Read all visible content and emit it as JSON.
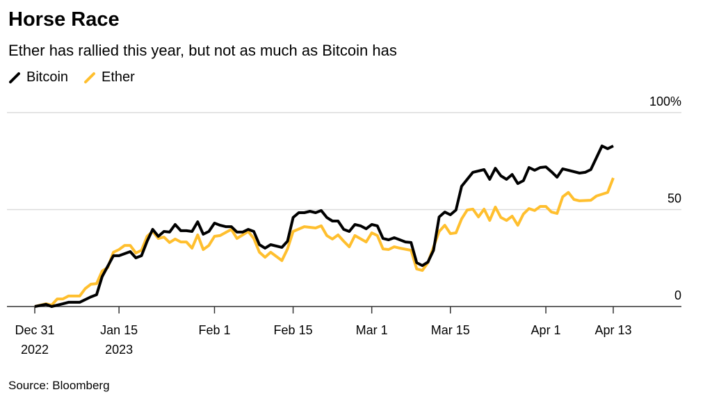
{
  "title": "Horse Race",
  "subtitle": "Ether has rallied this year, but not as much as Bitcoin has",
  "source": "Source: Bloomberg",
  "colors": {
    "bitcoin": "#000000",
    "ether": "#ffbf2e",
    "grid": "#dcdcdc"
  },
  "chart_data": {
    "type": "line",
    "title": "Horse Race",
    "xlabel": "",
    "ylabel": "",
    "ylim": [
      0,
      100
    ],
    "xlim": [
      "2022-12-31",
      "2023-04-13"
    ],
    "grid": true,
    "legend": "top-left",
    "y_ticks": [
      {
        "value": 0,
        "label": "0"
      },
      {
        "value": 50,
        "label": "50"
      },
      {
        "value": 100,
        "label": "100%"
      }
    ],
    "x_ticks": [
      {
        "date": "2022-12-31",
        "label": "Dec 31",
        "label2": "2022"
      },
      {
        "date": "2023-01-15",
        "label": "Jan 15",
        "label2": "2023"
      },
      {
        "date": "2023-02-01",
        "label": "Feb 1",
        "label2": ""
      },
      {
        "date": "2023-02-15",
        "label": "Feb 15",
        "label2": ""
      },
      {
        "date": "2023-03-01",
        "label": "Mar 1",
        "label2": ""
      },
      {
        "date": "2023-03-15",
        "label": "Mar 15",
        "label2": ""
      },
      {
        "date": "2023-04-01",
        "label": "Apr 1",
        "label2": ""
      },
      {
        "date": "2023-04-13",
        "label": "Apr 13",
        "label2": ""
      }
    ],
    "series": [
      {
        "name": "Bitcoin",
        "color": "#000000",
        "points": [
          [
            "2022-12-31",
            0
          ],
          [
            "2023-01-02",
            1.1
          ],
          [
            "2023-01-03",
            0
          ],
          [
            "2023-01-05",
            1.4
          ],
          [
            "2023-01-06",
            2.2
          ],
          [
            "2023-01-08",
            2.2
          ],
          [
            "2023-01-10",
            5.0
          ],
          [
            "2023-01-11",
            6.1
          ],
          [
            "2023-01-12",
            15.4
          ],
          [
            "2023-01-14",
            26.2
          ],
          [
            "2023-01-15",
            26.2
          ],
          [
            "2023-01-17",
            28.3
          ],
          [
            "2023-01-18",
            25.1
          ],
          [
            "2023-01-19",
            26.2
          ],
          [
            "2023-01-20",
            33.7
          ],
          [
            "2023-01-21",
            39.8
          ],
          [
            "2023-01-22",
            36.2
          ],
          [
            "2023-01-23",
            38.7
          ],
          [
            "2023-01-24",
            38.4
          ],
          [
            "2023-01-25",
            42.3
          ],
          [
            "2023-01-26",
            39.1
          ],
          [
            "2023-01-27",
            39.1
          ],
          [
            "2023-01-28",
            38.7
          ],
          [
            "2023-01-29",
            43.7
          ],
          [
            "2023-01-30",
            37.3
          ],
          [
            "2023-01-31",
            38.7
          ],
          [
            "2023-02-01",
            43.0
          ],
          [
            "2023-02-02",
            41.9
          ],
          [
            "2023-02-03",
            41.2
          ],
          [
            "2023-02-04",
            41.2
          ],
          [
            "2023-02-05",
            38.4
          ],
          [
            "2023-02-06",
            38.4
          ],
          [
            "2023-02-07",
            39.8
          ],
          [
            "2023-02-08",
            38.7
          ],
          [
            "2023-02-09",
            31.9
          ],
          [
            "2023-02-10",
            30.1
          ],
          [
            "2023-02-11",
            31.9
          ],
          [
            "2023-02-13",
            30.5
          ],
          [
            "2023-02-14",
            33.7
          ],
          [
            "2023-02-15",
            45.9
          ],
          [
            "2023-02-16",
            48.4
          ],
          [
            "2023-02-17",
            48.4
          ],
          [
            "2023-02-18",
            49.1
          ],
          [
            "2023-02-19",
            48.4
          ],
          [
            "2023-02-20",
            49.5
          ],
          [
            "2023-02-21",
            45.9
          ],
          [
            "2023-02-22",
            44.1
          ],
          [
            "2023-02-23",
            44.1
          ],
          [
            "2023-02-24",
            39.8
          ],
          [
            "2023-02-25",
            38.7
          ],
          [
            "2023-02-26",
            42.3
          ],
          [
            "2023-02-27",
            41.6
          ],
          [
            "2023-02-28",
            40.1
          ],
          [
            "2023-03-01",
            42.3
          ],
          [
            "2023-03-02",
            41.6
          ],
          [
            "2023-03-03",
            35.1
          ],
          [
            "2023-03-04",
            34.4
          ],
          [
            "2023-03-05",
            35.5
          ],
          [
            "2023-03-06",
            34.4
          ],
          [
            "2023-03-07",
            33.3
          ],
          [
            "2023-03-08",
            33.0
          ],
          [
            "2023-03-09",
            22.6
          ],
          [
            "2023-03-10",
            21.1
          ],
          [
            "2023-03-11",
            22.9
          ],
          [
            "2023-03-12",
            29.0
          ],
          [
            "2023-03-13",
            46.2
          ],
          [
            "2023-03-14",
            48.7
          ],
          [
            "2023-03-15",
            47.3
          ],
          [
            "2023-03-16",
            49.8
          ],
          [
            "2023-03-17",
            62.0
          ],
          [
            "2023-03-19",
            69.2
          ],
          [
            "2023-03-21",
            70.6
          ],
          [
            "2023-03-22",
            65.6
          ],
          [
            "2023-03-23",
            71.3
          ],
          [
            "2023-03-24",
            67.4
          ],
          [
            "2023-03-25",
            65.6
          ],
          [
            "2023-03-26",
            68.1
          ],
          [
            "2023-03-27",
            63.4
          ],
          [
            "2023-03-28",
            64.9
          ],
          [
            "2023-03-29",
            71.7
          ],
          [
            "2023-03-30",
            70.3
          ],
          [
            "2023-03-31",
            71.7
          ],
          [
            "2023-04-01",
            72.0
          ],
          [
            "2023-04-02",
            69.5
          ],
          [
            "2023-04-03",
            66.7
          ],
          [
            "2023-04-04",
            71.0
          ],
          [
            "2023-04-05",
            70.3
          ],
          [
            "2023-04-07",
            68.8
          ],
          [
            "2023-04-08",
            69.2
          ],
          [
            "2023-04-09",
            70.6
          ],
          [
            "2023-04-11",
            82.8
          ],
          [
            "2023-04-12",
            81.4
          ],
          [
            "2023-04-13",
            82.8
          ]
        ]
      },
      {
        "name": "Ether",
        "color": "#ffbf2e",
        "points": [
          [
            "2022-12-31",
            0
          ],
          [
            "2023-01-02",
            1.4
          ],
          [
            "2023-01-03",
            0.7
          ],
          [
            "2023-01-04",
            3.9
          ],
          [
            "2023-01-05",
            3.9
          ],
          [
            "2023-01-06",
            5.4
          ],
          [
            "2023-01-08",
            5.4
          ],
          [
            "2023-01-09",
            9.3
          ],
          [
            "2023-01-10",
            11.5
          ],
          [
            "2023-01-11",
            11.8
          ],
          [
            "2023-01-12",
            18.3
          ],
          [
            "2023-01-13",
            20.1
          ],
          [
            "2023-01-14",
            28.0
          ],
          [
            "2023-01-15",
            29.4
          ],
          [
            "2023-01-16",
            31.5
          ],
          [
            "2023-01-17",
            31.5
          ],
          [
            "2023-01-18",
            27.6
          ],
          [
            "2023-01-19",
            29.0
          ],
          [
            "2023-01-20",
            36.2
          ],
          [
            "2023-01-21",
            38.7
          ],
          [
            "2023-01-22",
            35.1
          ],
          [
            "2023-01-23",
            35.8
          ],
          [
            "2023-01-24",
            33.0
          ],
          [
            "2023-01-25",
            34.8
          ],
          [
            "2023-01-26",
            33.3
          ],
          [
            "2023-01-27",
            33.3
          ],
          [
            "2023-01-28",
            30.1
          ],
          [
            "2023-01-29",
            36.9
          ],
          [
            "2023-01-30",
            29.4
          ],
          [
            "2023-01-31",
            31.5
          ],
          [
            "2023-02-01",
            36.2
          ],
          [
            "2023-02-02",
            36.6
          ],
          [
            "2023-02-04",
            39.8
          ],
          [
            "2023-02-05",
            35.1
          ],
          [
            "2023-02-07",
            38.7
          ],
          [
            "2023-02-08",
            35.1
          ],
          [
            "2023-02-09",
            28.0
          ],
          [
            "2023-02-10",
            25.4
          ],
          [
            "2023-02-11",
            28.0
          ],
          [
            "2023-02-13",
            23.7
          ],
          [
            "2023-02-14",
            29.7
          ],
          [
            "2023-02-15",
            38.7
          ],
          [
            "2023-02-17",
            41.2
          ],
          [
            "2023-02-19",
            40.5
          ],
          [
            "2023-02-20",
            41.6
          ],
          [
            "2023-02-21",
            36.6
          ],
          [
            "2023-02-22",
            34.8
          ],
          [
            "2023-02-23",
            36.9
          ],
          [
            "2023-02-24",
            33.7
          ],
          [
            "2023-02-25",
            30.8
          ],
          [
            "2023-02-26",
            36.6
          ],
          [
            "2023-02-28",
            33.3
          ],
          [
            "2023-03-01",
            38.0
          ],
          [
            "2023-03-02",
            36.6
          ],
          [
            "2023-03-03",
            29.7
          ],
          [
            "2023-03-04",
            29.4
          ],
          [
            "2023-03-05",
            30.8
          ],
          [
            "2023-03-06",
            30.1
          ],
          [
            "2023-03-08",
            29.0
          ],
          [
            "2023-03-09",
            19.4
          ],
          [
            "2023-03-10",
            18.6
          ],
          [
            "2023-03-11",
            22.6
          ],
          [
            "2023-03-13",
            38.7
          ],
          [
            "2023-03-14",
            41.9
          ],
          [
            "2023-03-15",
            37.6
          ],
          [
            "2023-03-16",
            38.0
          ],
          [
            "2023-03-17",
            45.2
          ],
          [
            "2023-03-18",
            49.8
          ],
          [
            "2023-03-19",
            50.2
          ],
          [
            "2023-03-20",
            46.2
          ],
          [
            "2023-03-21",
            50.2
          ],
          [
            "2023-03-22",
            44.4
          ],
          [
            "2023-03-23",
            51.3
          ],
          [
            "2023-03-24",
            45.9
          ],
          [
            "2023-03-25",
            44.4
          ],
          [
            "2023-03-26",
            46.6
          ],
          [
            "2023-03-27",
            41.9
          ],
          [
            "2023-03-28",
            47.7
          ],
          [
            "2023-03-29",
            50.5
          ],
          [
            "2023-03-30",
            49.5
          ],
          [
            "2023-03-31",
            51.6
          ],
          [
            "2023-04-01",
            51.6
          ],
          [
            "2023-04-02",
            48.7
          ],
          [
            "2023-04-03",
            48.0
          ],
          [
            "2023-04-04",
            56.6
          ],
          [
            "2023-04-05",
            58.8
          ],
          [
            "2023-04-06",
            55.2
          ],
          [
            "2023-04-07",
            54.5
          ],
          [
            "2023-04-09",
            54.8
          ],
          [
            "2023-04-10",
            57.0
          ],
          [
            "2023-04-12",
            58.8
          ],
          [
            "2023-04-13",
            66.3
          ]
        ]
      }
    ]
  }
}
